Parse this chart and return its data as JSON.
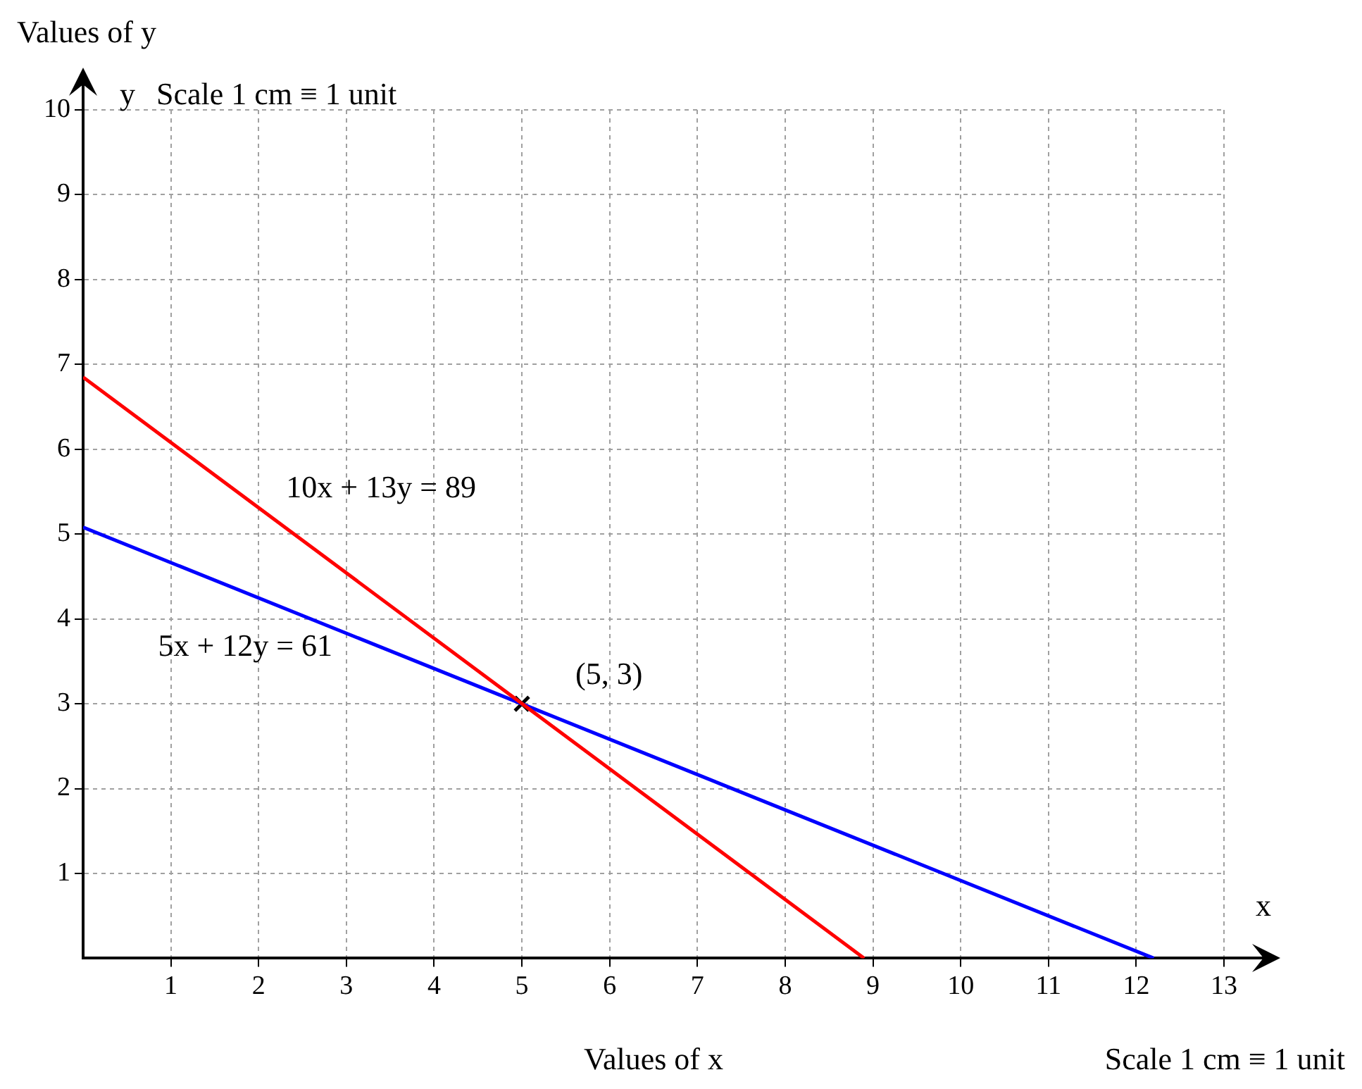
{
  "chart_data": {
    "type": "line",
    "xlabel": "Values of x",
    "ylabel": "Values of y",
    "xlim": [
      0,
      13
    ],
    "ylim": [
      0,
      10
    ],
    "xticks": [
      1,
      2,
      3,
      4,
      5,
      6,
      7,
      8,
      9,
      10,
      11,
      12,
      13
    ],
    "yticks": [
      1,
      2,
      3,
      4,
      5,
      6,
      7,
      8,
      9,
      10
    ],
    "grid": true,
    "legend": false,
    "marker": "none",
    "line_style": "solid",
    "series": [
      {
        "name": "10x + 13y = 89",
        "color": "#ff0000",
        "x": [
          0,
          8.9
        ],
        "values": [
          6.85,
          0
        ]
      },
      {
        "name": "5x + 12y = 61",
        "color": "#0000ff",
        "x": [
          0,
          12.2
        ],
        "values": [
          5.08,
          0
        ]
      },
      {
        "type": "scatter",
        "marker": "cross",
        "color": "#000000",
        "x": [
          5
        ],
        "values": [
          3
        ]
      }
    ],
    "annotations": [
      "y",
      "Scale 1 cm ≡ 1 unit",
      "x",
      "Scale 1 cm ≡ 1 unit",
      {
        "text": "(5, 3)",
        "x": 5,
        "y": 3
      }
    ]
  }
}
